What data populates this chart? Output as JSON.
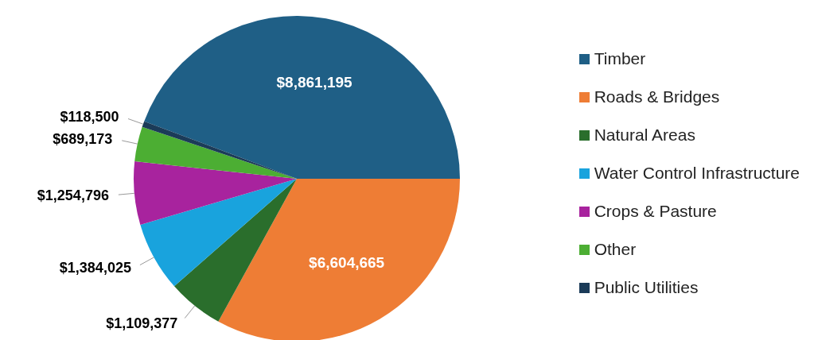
{
  "chart_data": {
    "type": "pie",
    "categories": [
      "Timber",
      "Roads & Bridges",
      "Natural Areas",
      "Water Control Infrastructure",
      "Crops & Pasture",
      "Other",
      "Public Utilities"
    ],
    "values": [
      8861195,
      6604665,
      1109377,
      1384025,
      1254796,
      689173,
      118500
    ],
    "value_labels": [
      "$8,861,195",
      "$6,604,665",
      "$1,109,377",
      "$1,384,025",
      "$1,254,796",
      "$689,173",
      "$118,500"
    ],
    "colors": [
      "#1f5f86",
      "#ee7d35",
      "#2a6e2c",
      "#19a3dd",
      "#a8239e",
      "#4cae33",
      "#1b3b58"
    ],
    "legend": "right"
  }
}
